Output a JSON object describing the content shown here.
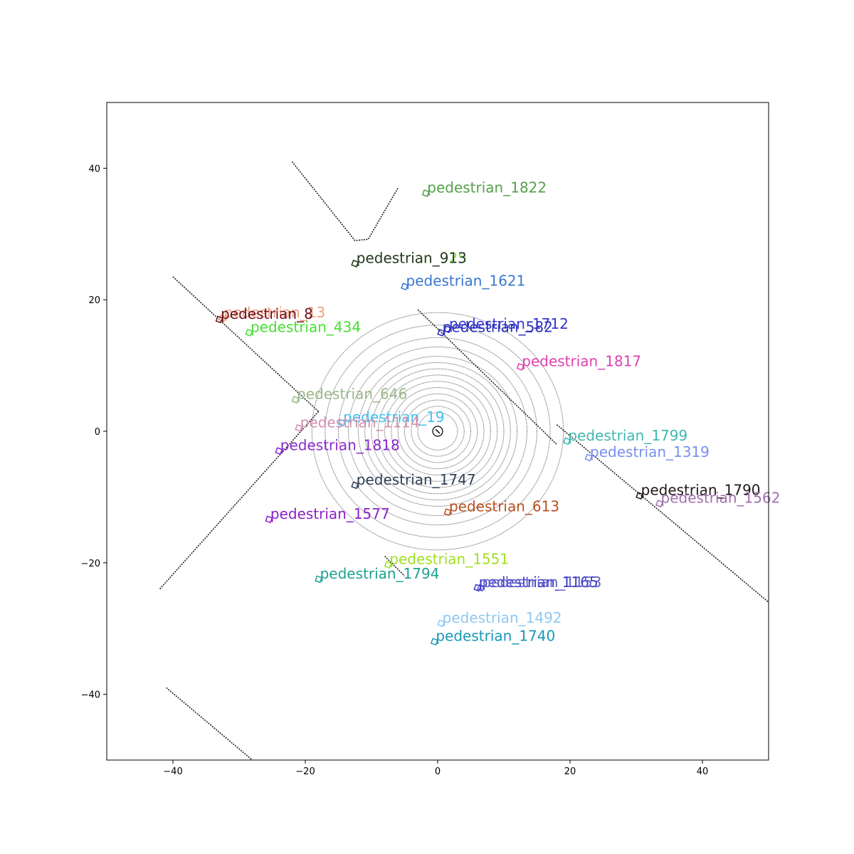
{
  "chart_data": {
    "type": "scatter",
    "title": "",
    "xlabel": "",
    "ylabel": "",
    "xlim": [
      -50,
      50
    ],
    "ylim": [
      -50,
      50
    ],
    "grid": false,
    "x_ticks": [
      -40,
      -20,
      0,
      20,
      40
    ],
    "y_ticks": [
      -40,
      -20,
      0,
      20,
      40
    ],
    "x_tick_labels": [
      "−40",
      "−20",
      "0",
      "20",
      "40"
    ],
    "y_tick_labels": [
      "−40",
      "−20",
      "0",
      "20",
      "40"
    ],
    "ego_position": [
      0,
      0
    ],
    "lidar_rings_radii": [
      3,
      4,
      5,
      6,
      7,
      8,
      9,
      10,
      11,
      12,
      13.5,
      15,
      17,
      19
    ],
    "lidar_ring_color": "#555555",
    "structures": [
      {
        "points": [
          [
            -22,
            41
          ],
          [
            -12.5,
            29
          ],
          [
            -10.5,
            29.2
          ],
          [
            -6,
            37
          ]
        ]
      },
      {
        "points": [
          [
            -40,
            23.5
          ],
          [
            -18,
            3
          ]
        ]
      },
      {
        "points": [
          [
            -18,
            3
          ],
          [
            -42,
            -24
          ]
        ]
      },
      {
        "points": [
          [
            -3,
            18.5
          ],
          [
            18,
            -2
          ]
        ]
      },
      {
        "points": [
          [
            18,
            1
          ],
          [
            50,
            -26
          ]
        ]
      },
      {
        "points": [
          [
            -41,
            -39
          ],
          [
            -28,
            -50
          ]
        ]
      },
      {
        "points": [
          [
            -8,
            -19
          ],
          [
            -5,
            -22
          ]
        ]
      }
    ],
    "objects": [
      {
        "label": "pedestrian_1822",
        "x": -1.8,
        "y": 36.2,
        "color": "#55a04a"
      },
      {
        "label": "pedestrian_925",
        "x": -12.5,
        "y": 25.5,
        "color": "#7fe03a"
      },
      {
        "label": "pedestrian_913",
        "x": -12.5,
        "y": 25.5,
        "color": "#2d3a2d"
      },
      {
        "label": "pedestrian_1621",
        "x": -5,
        "y": 22,
        "color": "#3a78d0"
      },
      {
        "label": "pedestrian_13",
        "x": -32.5,
        "y": 17.2,
        "color": "#f0a07a"
      },
      {
        "label": "pedestrian_8",
        "x": -33,
        "y": 17,
        "color": "#6a1020"
      },
      {
        "label": "pedestrian_1712",
        "x": 1.5,
        "y": 15.5,
        "color": "#3535d0"
      },
      {
        "label": "pedestrian_582",
        "x": 0.5,
        "y": 15.0,
        "color": "#2a30b8"
      },
      {
        "label": "pedestrian_434",
        "x": -28.5,
        "y": 15.0,
        "color": "#45e030"
      },
      {
        "label": "pedestrian_1817",
        "x": 12.5,
        "y": 9.8,
        "color": "#e040b0"
      },
      {
        "label": "pedestrian_646",
        "x": -21.5,
        "y": 4.8,
        "color": "#98b888"
      },
      {
        "label": "pedestrian_19",
        "x": -14.5,
        "y": 1.3,
        "color": "#40c0f0"
      },
      {
        "label": "pedestrian_1114",
        "x": -21,
        "y": 0.5,
        "color": "#d090b0"
      },
      {
        "label": "pedestrian_1818",
        "x": -24,
        "y": -3,
        "color": "#8a28d0"
      },
      {
        "label": "pedestrian_1799",
        "x": 19.5,
        "y": -1.5,
        "color": "#40b8b0"
      },
      {
        "label": "pedestrian_1319",
        "x": 22.8,
        "y": -4.0,
        "color": "#7890f0"
      },
      {
        "label": "pedestrian_1747",
        "x": -12.5,
        "y": -8.2,
        "color": "#304058"
      },
      {
        "label": "pedestrian_1790",
        "x": 30.5,
        "y": -9.8,
        "color": "#201818"
      },
      {
        "label": "pedestrian_1562",
        "x": 33.5,
        "y": -11,
        "color": "#a070b0"
      },
      {
        "label": "pedestrian_613",
        "x": 1.5,
        "y": -12.3,
        "color": "#b85020"
      },
      {
        "label": "pedestrian_1577",
        "x": -25.5,
        "y": -13.4,
        "color": "#8a20c8"
      },
      {
        "label": "pedestrian_1551",
        "x": -7.5,
        "y": -20.3,
        "color": "#a0e020"
      },
      {
        "label": "pedestrian_1794",
        "x": -18,
        "y": -22.5,
        "color": "#20a090"
      },
      {
        "label": "pedestrian_1165",
        "x": 6,
        "y": -23.8,
        "color": "#3a38c8"
      },
      {
        "label": "pedestrian_1153",
        "x": 6.5,
        "y": -23.8,
        "color": "#6060c8"
      },
      {
        "label": "pedestrian_1492",
        "x": 0.5,
        "y": -29.2,
        "color": "#90c8f0"
      },
      {
        "label": "pedestrian_1740",
        "x": -0.5,
        "y": -32,
        "color": "#1898b8"
      }
    ]
  }
}
